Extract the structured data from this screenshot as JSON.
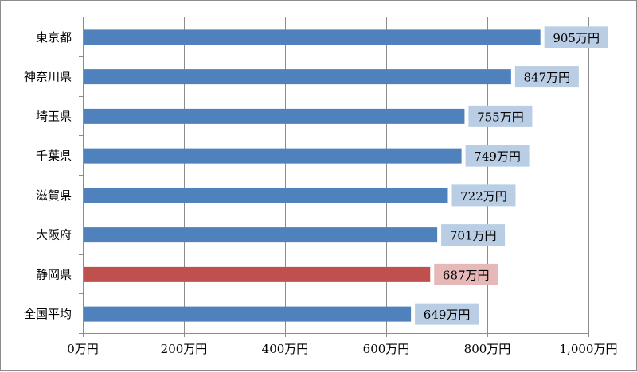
{
  "chart_data": {
    "type": "bar",
    "orientation": "horizontal",
    "title": "",
    "xlabel": "",
    "ylabel": "",
    "categories": [
      "東京都",
      "神奈川県",
      "埼玉県",
      "千葉県",
      "滋賀県",
      "大阪府",
      "静岡県",
      "全国平均"
    ],
    "values": [
      905,
      847,
      755,
      749,
      722,
      701,
      687,
      649
    ],
    "data_labels": [
      "905万円",
      "847万円",
      "755万円",
      "749万円",
      "722万円",
      "701万円",
      "687万円",
      "649万円"
    ],
    "highlight_index": 6,
    "xlim": [
      0,
      1000
    ],
    "x_ticks": [
      0,
      200,
      400,
      600,
      800,
      1000
    ],
    "x_tick_labels": [
      "0万円",
      "200万円",
      "400万円",
      "600万円",
      "800万円",
      "1,000万円"
    ],
    "grid": "vertical",
    "colors": {
      "bar": "#4f81bd",
      "bar_highlight": "#c0504d",
      "label_bg": "#b9cde5",
      "label_bg_highlight": "#e6b9b8",
      "grid": "#8c8c8c",
      "axis": "#8c8c8c"
    }
  }
}
